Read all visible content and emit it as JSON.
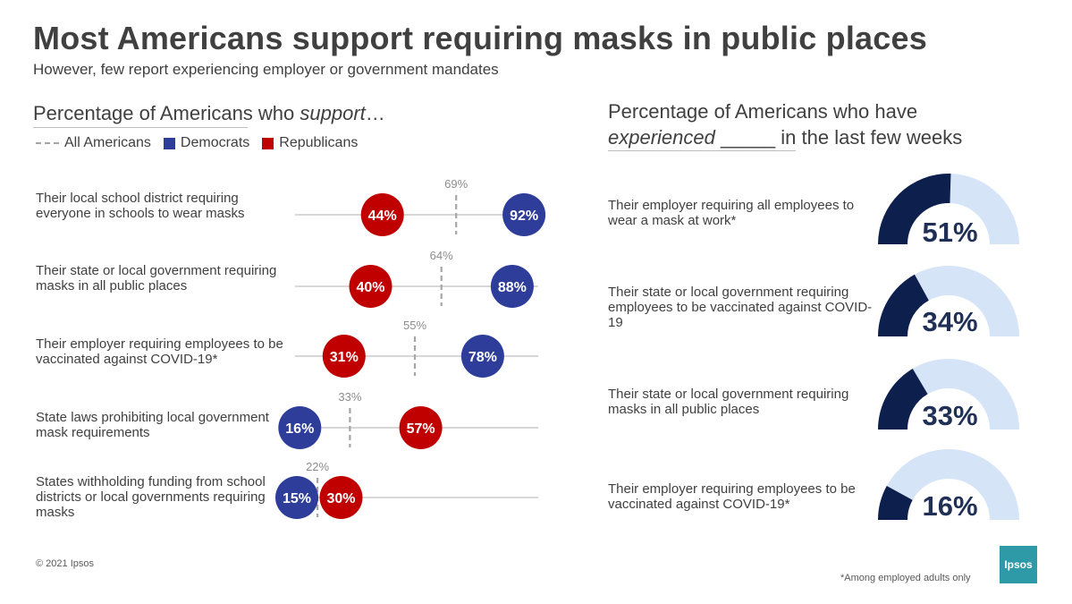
{
  "title": "Most Americans support requiring masks in public places",
  "subtitle": "However, few report experiencing employer or government mandates",
  "left_heading": {
    "prefix": "Percentage of Americans who ",
    "emph": "support",
    "suffix": "…"
  },
  "legend": {
    "all": "All Americans",
    "dem": "Democrats",
    "rep": "Republicans"
  },
  "colors": {
    "dem": "#2e3d99",
    "rep": "#c00000",
    "avg": "#a6a6a6",
    "gauge_dark": "#0d1f4d",
    "gauge_light": "#d6e4f7",
    "line": "#bfbfbf"
  },
  "right_heading": {
    "line1": "Percentage of Americans who have",
    "emph": "experienced",
    "line2_rest": " _____ in the last few weeks"
  },
  "chart_data": [
    {
      "type": "dot",
      "title": "Percentage of Americans who support…",
      "series": [
        {
          "name": "All Americans",
          "values": [
            69,
            64,
            55,
            33,
            22
          ]
        },
        {
          "name": "Democrats",
          "values": [
            92,
            88,
            78,
            16,
            15
          ]
        },
        {
          "name": "Republicans",
          "values": [
            44,
            40,
            31,
            57,
            30
          ]
        }
      ],
      "rows": [
        {
          "label": "Their local school district requiring everyone in schools to wear masks",
          "all": 69,
          "dem": 92,
          "rep": 44,
          "all_label": "69%",
          "dem_label": "92%",
          "rep_label": "44%"
        },
        {
          "label": "Their state or local government requiring masks in all public places",
          "all": 64,
          "dem": 88,
          "rep": 40,
          "all_label": "64%",
          "dem_label": "88%",
          "rep_label": "40%"
        },
        {
          "label": "Their employer requiring employees to be vaccinated against COVID-19*",
          "all": 55,
          "dem": 78,
          "rep": 31,
          "all_label": "55%",
          "dem_label": "78%",
          "rep_label": "31%"
        },
        {
          "label": "State laws prohibiting local government mask requirements",
          "all": 33,
          "dem": 16,
          "rep": 57,
          "all_label": "33%",
          "dem_label": "16%",
          "rep_label": "57%"
        },
        {
          "label": "States withholding funding from school districts or local governments requiring masks",
          "all": 22,
          "dem": 15,
          "rep": 30,
          "all_label": "22%",
          "dem_label": "15%",
          "rep_label": "30%"
        }
      ]
    },
    {
      "type": "gauge",
      "title": "Percentage of Americans who have experienced _____ in the last few weeks",
      "items": [
        {
          "label": "Their employer requiring all employees to wear a mask at work*",
          "value": 51,
          "value_label": "51%"
        },
        {
          "label": "Their state or local government requiring employees to be vaccinated against COVID-19",
          "value": 34,
          "value_label": "34%"
        },
        {
          "label": "Their state or local government requiring masks in all public places",
          "value": 33,
          "value_label": "33%"
        },
        {
          "label": "Their employer requiring employees to be vaccinated against COVID-19*",
          "value": 16,
          "value_label": "16%"
        }
      ]
    }
  ],
  "footer": {
    "copyright": "© 2021 Ipsos",
    "note": "*Among employed adults only",
    "logo": "Ipsos"
  }
}
